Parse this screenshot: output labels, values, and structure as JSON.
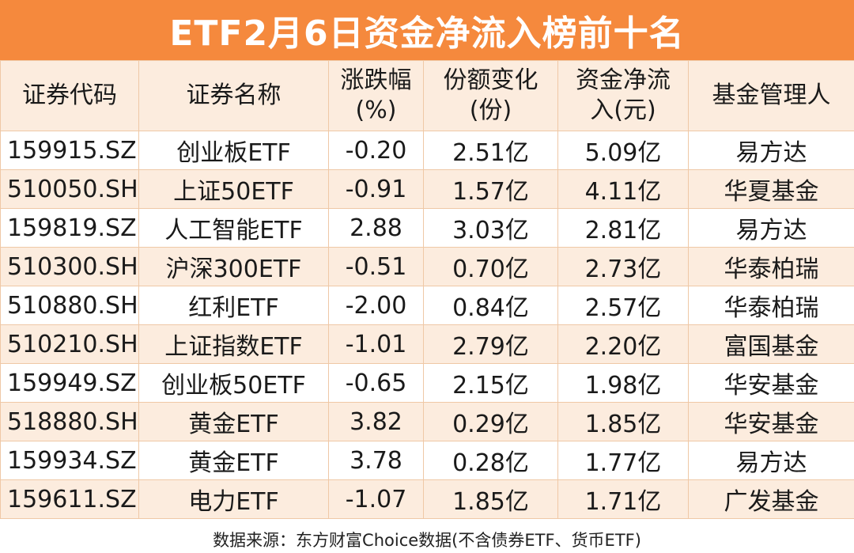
{
  "title": "ETF2月6日资金净流入榜前十名",
  "headers": [
    {
      "line1": "证券代码",
      "line2": ""
    },
    {
      "line1": "证券名称",
      "line2": ""
    },
    {
      "line1": "涨跌幅",
      "line2": "(%)"
    },
    {
      "line1": "份额变化",
      "line2": "(份)"
    },
    {
      "line1": "资金净流",
      "line2": "入(元)"
    },
    {
      "line1": "基金管理人",
      "line2": ""
    }
  ],
  "rows": [
    {
      "code": "159915.SZ",
      "name": "创业板ETF",
      "change": "-0.20",
      "share_change": "2.51亿",
      "net_inflow": "5.09亿",
      "manager": "易方达"
    },
    {
      "code": "510050.SH",
      "name": "上证50ETF",
      "change": "-0.91",
      "share_change": "1.57亿",
      "net_inflow": "4.11亿",
      "manager": "华夏基金"
    },
    {
      "code": "159819.SZ",
      "name": "人工智能ETF",
      "change": "2.88",
      "share_change": "3.03亿",
      "net_inflow": "2.81亿",
      "manager": "易方达"
    },
    {
      "code": "510300.SH",
      "name": "沪深300ETF",
      "change": "-0.51",
      "share_change": "0.70亿",
      "net_inflow": "2.73亿",
      "manager": "华泰柏瑞"
    },
    {
      "code": "510880.SH",
      "name": "红利ETF",
      "change": "-2.00",
      "share_change": "0.84亿",
      "net_inflow": "2.57亿",
      "manager": "华泰柏瑞"
    },
    {
      "code": "510210.SH",
      "name": "上证指数ETF",
      "change": "-1.01",
      "share_change": "2.79亿",
      "net_inflow": "2.20亿",
      "manager": "富国基金"
    },
    {
      "code": "159949.SZ",
      "name": "创业板50ETF",
      "change": "-0.65",
      "share_change": "2.15亿",
      "net_inflow": "1.98亿",
      "manager": "华安基金"
    },
    {
      "code": "518880.SH",
      "name": "黄金ETF",
      "change": "3.82",
      "share_change": "0.29亿",
      "net_inflow": "1.85亿",
      "manager": "华安基金"
    },
    {
      "code": "159934.SZ",
      "name": "黄金ETF",
      "change": "3.78",
      "share_change": "0.28亿",
      "net_inflow": "1.77亿",
      "manager": "易方达"
    },
    {
      "code": "159611.SZ",
      "name": "电力ETF",
      "change": "-1.07",
      "share_change": "1.85亿",
      "net_inflow": "1.71亿",
      "manager": "广发基金"
    }
  ],
  "footer": "数据来源：东方财富Choice数据(不含债券ETF、货币ETF)",
  "colors": {
    "title_bg": "#f5893d",
    "band": "#fcecde",
    "border": "#efc8a6"
  }
}
